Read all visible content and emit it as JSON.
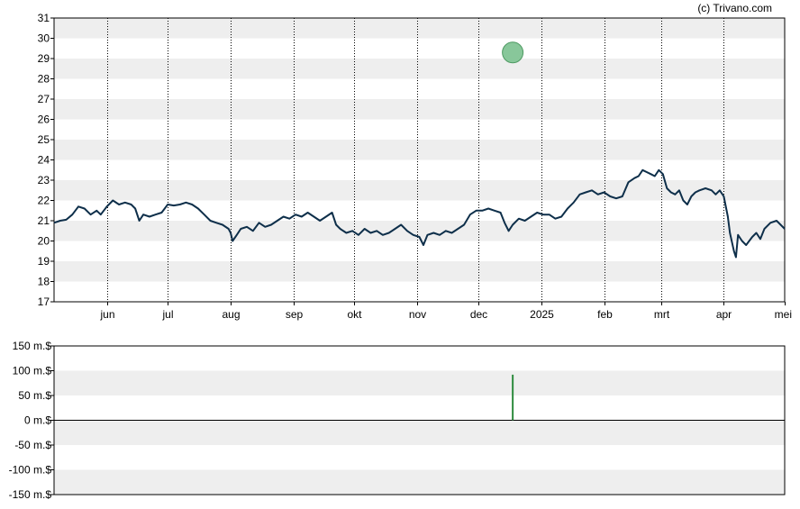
{
  "credit": "(c) Trivano.com",
  "colors": {
    "price_line": "#0e2f4a",
    "band": "#eeeeee",
    "marker_fill": "#88c79a",
    "marker_stroke": "#4e9a62",
    "volume_bar": "#2e8b3e",
    "grid": "#000000"
  },
  "chart_data": [
    {
      "type": "line",
      "name": "price",
      "x_range": [
        "2024-05-06",
        "2025-05-01"
      ],
      "ylim": [
        17,
        31
      ],
      "y_ticks": [
        "17",
        "18",
        "19",
        "20",
        "21",
        "22",
        "23",
        "24",
        "25",
        "26",
        "27",
        "28",
        "29",
        "30",
        "31"
      ],
      "x_ticks": [
        {
          "label": "jun",
          "date": "2024-06-01"
        },
        {
          "label": "jul",
          "date": "2024-07-01"
        },
        {
          "label": "aug",
          "date": "2024-08-01"
        },
        {
          "label": "sep",
          "date": "2024-09-01"
        },
        {
          "label": "okt",
          "date": "2024-10-01"
        },
        {
          "label": "nov",
          "date": "2024-11-01"
        },
        {
          "label": "dec",
          "date": "2024-12-01"
        },
        {
          "label": "2025",
          "date": "2025-01-01"
        },
        {
          "label": "feb",
          "date": "2025-02-01"
        },
        {
          "label": "mrt",
          "date": "2025-03-01"
        },
        {
          "label": "apr",
          "date": "2025-04-01"
        },
        {
          "label": "mei",
          "date": "2025-05-01"
        }
      ],
      "grid": "vertical dotted at month ticks, alternating horizontal bands",
      "series": [
        {
          "points": [
            [
              "2024-05-06",
              20.9
            ],
            [
              "2024-05-09",
              21.0
            ],
            [
              "2024-05-12",
              21.05
            ],
            [
              "2024-05-15",
              21.3
            ],
            [
              "2024-05-18",
              21.7
            ],
            [
              "2024-05-21",
              21.6
            ],
            [
              "2024-05-24",
              21.3
            ],
            [
              "2024-05-27",
              21.5
            ],
            [
              "2024-05-29",
              21.3
            ],
            [
              "2024-06-01",
              21.7
            ],
            [
              "2024-06-04",
              22.0
            ],
            [
              "2024-06-07",
              21.8
            ],
            [
              "2024-06-10",
              21.9
            ],
            [
              "2024-06-13",
              21.8
            ],
            [
              "2024-06-15",
              21.6
            ],
            [
              "2024-06-17",
              21.0
            ],
            [
              "2024-06-19",
              21.3
            ],
            [
              "2024-06-22",
              21.2
            ],
            [
              "2024-06-25",
              21.3
            ],
            [
              "2024-06-28",
              21.4
            ],
            [
              "2024-07-01",
              21.8
            ],
            [
              "2024-07-04",
              21.75
            ],
            [
              "2024-07-07",
              21.8
            ],
            [
              "2024-07-10",
              21.9
            ],
            [
              "2024-07-13",
              21.8
            ],
            [
              "2024-07-16",
              21.6
            ],
            [
              "2024-07-19",
              21.3
            ],
            [
              "2024-07-22",
              21.0
            ],
            [
              "2024-07-25",
              20.9
            ],
            [
              "2024-07-28",
              20.8
            ],
            [
              "2024-07-31",
              20.6
            ],
            [
              "2024-08-01",
              20.4
            ],
            [
              "2024-08-02",
              20.0
            ],
            [
              "2024-08-04",
              20.3
            ],
            [
              "2024-08-06",
              20.6
            ],
            [
              "2024-08-09",
              20.7
            ],
            [
              "2024-08-12",
              20.5
            ],
            [
              "2024-08-15",
              20.9
            ],
            [
              "2024-08-18",
              20.7
            ],
            [
              "2024-08-21",
              20.8
            ],
            [
              "2024-08-24",
              21.0
            ],
            [
              "2024-08-27",
              21.2
            ],
            [
              "2024-08-30",
              21.1
            ],
            [
              "2024-09-02",
              21.3
            ],
            [
              "2024-09-05",
              21.2
            ],
            [
              "2024-09-08",
              21.4
            ],
            [
              "2024-09-11",
              21.2
            ],
            [
              "2024-09-14",
              21.0
            ],
            [
              "2024-09-17",
              21.2
            ],
            [
              "2024-09-20",
              21.4
            ],
            [
              "2024-09-22",
              20.8
            ],
            [
              "2024-09-24",
              20.6
            ],
            [
              "2024-09-27",
              20.4
            ],
            [
              "2024-09-30",
              20.5
            ],
            [
              "2024-10-03",
              20.3
            ],
            [
              "2024-10-06",
              20.6
            ],
            [
              "2024-10-09",
              20.4
            ],
            [
              "2024-10-12",
              20.5
            ],
            [
              "2024-10-15",
              20.3
            ],
            [
              "2024-10-18",
              20.4
            ],
            [
              "2024-10-21",
              20.6
            ],
            [
              "2024-10-24",
              20.8
            ],
            [
              "2024-10-27",
              20.5
            ],
            [
              "2024-10-30",
              20.3
            ],
            [
              "2024-11-02",
              20.2
            ],
            [
              "2024-11-04",
              19.8
            ],
            [
              "2024-11-06",
              20.3
            ],
            [
              "2024-11-09",
              20.4
            ],
            [
              "2024-11-12",
              20.3
            ],
            [
              "2024-11-15",
              20.5
            ],
            [
              "2024-11-18",
              20.4
            ],
            [
              "2024-11-21",
              20.6
            ],
            [
              "2024-11-24",
              20.8
            ],
            [
              "2024-11-27",
              21.3
            ],
            [
              "2024-11-30",
              21.5
            ],
            [
              "2024-12-03",
              21.5
            ],
            [
              "2024-12-06",
              21.6
            ],
            [
              "2024-12-09",
              21.5
            ],
            [
              "2024-12-12",
              21.4
            ],
            [
              "2024-12-14",
              20.9
            ],
            [
              "2024-12-16",
              20.5
            ],
            [
              "2024-12-18",
              20.8
            ],
            [
              "2024-12-21",
              21.1
            ],
            [
              "2024-12-24",
              21.0
            ],
            [
              "2024-12-27",
              21.2
            ],
            [
              "2024-12-30",
              21.4
            ],
            [
              "2025-01-02",
              21.3
            ],
            [
              "2025-01-05",
              21.3
            ],
            [
              "2025-01-08",
              21.1
            ],
            [
              "2025-01-11",
              21.2
            ],
            [
              "2025-01-14",
              21.6
            ],
            [
              "2025-01-17",
              21.9
            ],
            [
              "2025-01-20",
              22.3
            ],
            [
              "2025-01-23",
              22.4
            ],
            [
              "2025-01-26",
              22.5
            ],
            [
              "2025-01-29",
              22.3
            ],
            [
              "2025-02-01",
              22.4
            ],
            [
              "2025-02-04",
              22.2
            ],
            [
              "2025-02-07",
              22.1
            ],
            [
              "2025-02-10",
              22.2
            ],
            [
              "2025-02-13",
              22.9
            ],
            [
              "2025-02-16",
              23.1
            ],
            [
              "2025-02-18",
              23.2
            ],
            [
              "2025-02-20",
              23.5
            ],
            [
              "2025-02-22",
              23.4
            ],
            [
              "2025-02-24",
              23.3
            ],
            [
              "2025-02-26",
              23.2
            ],
            [
              "2025-02-28",
              23.5
            ],
            [
              "2025-03-02",
              23.3
            ],
            [
              "2025-03-04",
              22.6
            ],
            [
              "2025-03-06",
              22.4
            ],
            [
              "2025-03-08",
              22.3
            ],
            [
              "2025-03-10",
              22.5
            ],
            [
              "2025-03-12",
              22.0
            ],
            [
              "2025-03-14",
              21.8
            ],
            [
              "2025-03-16",
              22.2
            ],
            [
              "2025-03-18",
              22.4
            ],
            [
              "2025-03-20",
              22.5
            ],
            [
              "2025-03-23",
              22.6
            ],
            [
              "2025-03-26",
              22.5
            ],
            [
              "2025-03-28",
              22.3
            ],
            [
              "2025-03-30",
              22.5
            ],
            [
              "2025-04-01",
              22.2
            ],
            [
              "2025-04-03",
              21.2
            ],
            [
              "2025-04-04",
              20.4
            ],
            [
              "2025-04-06",
              19.5
            ],
            [
              "2025-04-07",
              19.2
            ],
            [
              "2025-04-08",
              20.3
            ],
            [
              "2025-04-10",
              20.0
            ],
            [
              "2025-04-12",
              19.8
            ],
            [
              "2025-04-15",
              20.2
            ],
            [
              "2025-04-17",
              20.4
            ],
            [
              "2025-04-19",
              20.1
            ],
            [
              "2025-04-21",
              20.6
            ],
            [
              "2025-04-24",
              20.9
            ],
            [
              "2025-04-27",
              21.0
            ],
            [
              "2025-04-29",
              20.8
            ],
            [
              "2025-05-01",
              20.6
            ]
          ]
        }
      ],
      "annotations": [
        {
          "type": "circle-marker",
          "date": "2024-12-18",
          "value": 29.3
        }
      ]
    },
    {
      "type": "bar",
      "name": "volume",
      "x_range": [
        "2024-05-06",
        "2025-05-01"
      ],
      "ylim": [
        -150,
        150
      ],
      "y_ticks": [
        "150 m.$",
        "100 m.$",
        "50 m.$",
        "0 m.$",
        "-50 m.$",
        "-100 m.$",
        "-150 m.$"
      ],
      "y_tick_values": [
        150,
        100,
        50,
        0,
        -50,
        -100,
        -150
      ],
      "unit": "m.$",
      "grid": "alternating horizontal bands, baseline at 0",
      "bars": [
        {
          "date": "2024-12-18",
          "value": 92
        }
      ]
    }
  ]
}
